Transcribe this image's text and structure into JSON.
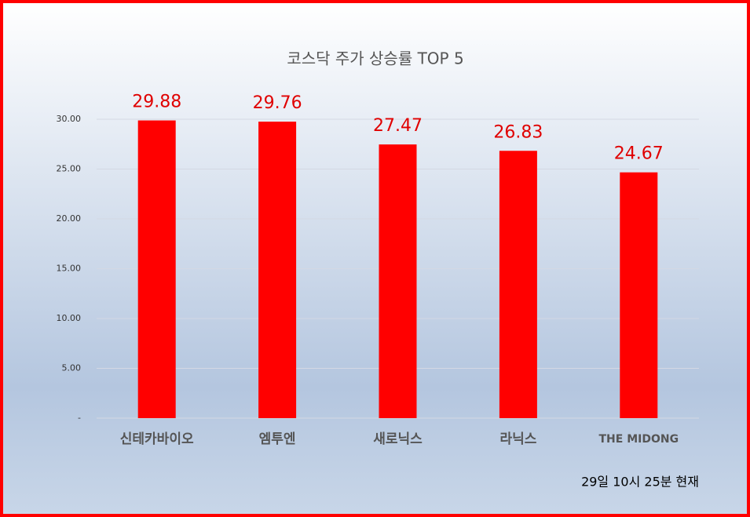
{
  "chart_data": {
    "type": "bar",
    "title": "코스닥 주가 상승률 TOP 5",
    "categories": [
      "신테카바이오",
      "엠투엔",
      "새로닉스",
      "라닉스",
      "THE MIDONG"
    ],
    "values": [
      29.88,
      29.76,
      27.47,
      26.83,
      24.67
    ],
    "color": "#ff0000",
    "ylim": [
      0,
      30
    ],
    "yticks": [
      {
        "value": 0,
        "label": "-"
      },
      {
        "value": 5,
        "label": "5.00"
      },
      {
        "value": 10,
        "label": "10.00"
      },
      {
        "value": 15,
        "label": "15.00"
      },
      {
        "value": 20,
        "label": "20.00"
      },
      {
        "value": 25,
        "label": "25.00"
      },
      {
        "value": 30,
        "label": "30.00"
      }
    ],
    "grid": true,
    "annotation": "29일 10시 25분 현재"
  }
}
